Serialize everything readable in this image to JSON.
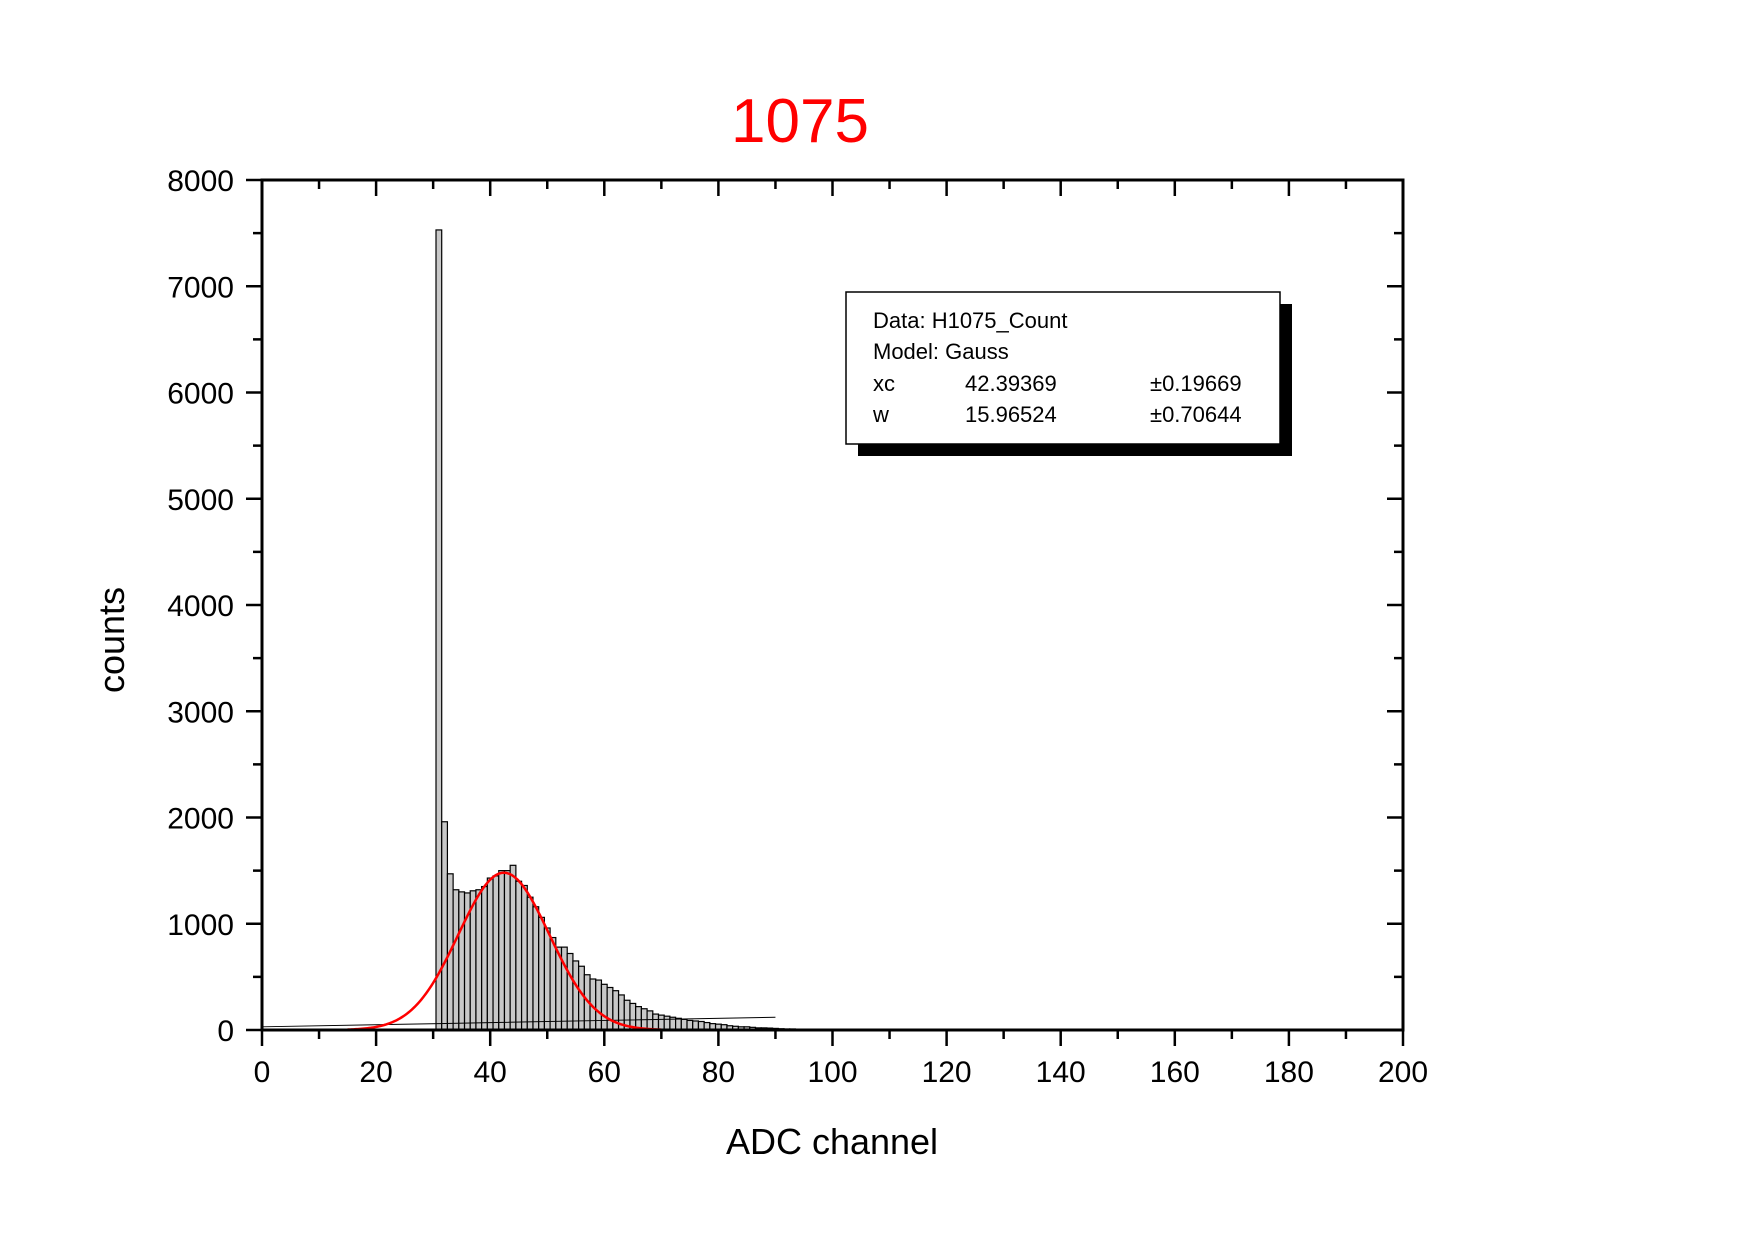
{
  "chart_data": {
    "type": "bar",
    "title": "1075",
    "title_color": "#ff0000",
    "xlabel": "ADC channel",
    "ylabel": "counts",
    "xlim": [
      0,
      200
    ],
    "ylim": [
      0,
      8000
    ],
    "xticks": [
      0,
      20,
      40,
      60,
      80,
      100,
      120,
      140,
      160,
      180,
      200
    ],
    "yticks": [
      0,
      1000,
      2000,
      3000,
      4000,
      5000,
      6000,
      7000,
      8000
    ],
    "grid": false,
    "bar_width": 1,
    "bar_color": "#c8c8c8",
    "series": [
      {
        "x": [
          31,
          32,
          33,
          34,
          35,
          36,
          37,
          38,
          39,
          40,
          41,
          42,
          43,
          44,
          45,
          46,
          47,
          48,
          49,
          50,
          51,
          52,
          53,
          54,
          55,
          56,
          57,
          58,
          59,
          60,
          61,
          62,
          63,
          64,
          65,
          66,
          67,
          68,
          69,
          70,
          71,
          72,
          73,
          74,
          75,
          76,
          77,
          78,
          79,
          80,
          81,
          82,
          83,
          84,
          85,
          86,
          87,
          88,
          89,
          90,
          91,
          92,
          93,
          94,
          95,
          96,
          97,
          98,
          99,
          100,
          101,
          102
        ],
        "values": [
          7530,
          1960,
          1470,
          1320,
          1300,
          1290,
          1310,
          1320,
          1350,
          1430,
          1450,
          1500,
          1500,
          1550,
          1400,
          1360,
          1250,
          1160,
          1060,
          960,
          870,
          780,
          780,
          720,
          650,
          600,
          520,
          480,
          470,
          430,
          400,
          370,
          330,
          280,
          250,
          220,
          200,
          180,
          150,
          140,
          130,
          120,
          110,
          100,
          90,
          85,
          80,
          70,
          60,
          55,
          50,
          40,
          35,
          30,
          30,
          25,
          20,
          20,
          18,
          15,
          12,
          10,
          10,
          8,
          8,
          6,
          5,
          5,
          4,
          4,
          3,
          3
        ]
      }
    ],
    "fit": {
      "color": "#ff0000",
      "xc": 42.39369,
      "w": 15.96524,
      "A": 1480,
      "y0": 0,
      "x_range": [
        15,
        70
      ]
    },
    "background_trace": {
      "color": "#000000",
      "x": [
        0,
        31,
        60,
        90
      ],
      "values": [
        30,
        60,
        90,
        120
      ]
    },
    "legend": {
      "placement": "top-right",
      "data_line": "Data: H1075_Count",
      "model_line": "Model: Gauss",
      "rows": [
        {
          "name": "xc",
          "value": "42.39369",
          "error": "±0.19669"
        },
        {
          "name": "w",
          "value": "15.96524",
          "error": "±0.70644"
        }
      ]
    }
  }
}
